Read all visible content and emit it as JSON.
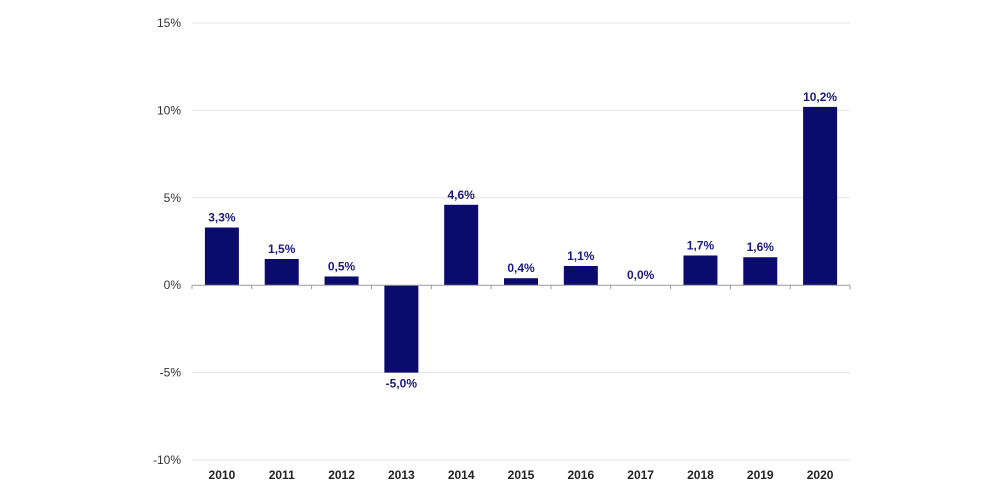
{
  "chart_data": {
    "type": "bar",
    "title": "",
    "xlabel": "",
    "ylabel": "",
    "categories": [
      "2010",
      "2011",
      "2012",
      "2013",
      "2014",
      "2015",
      "2016",
      "2017",
      "2018",
      "2019",
      "2020"
    ],
    "values": [
      3.3,
      1.5,
      0.5,
      -5.0,
      4.6,
      0.4,
      1.1,
      0.0,
      1.7,
      1.6,
      10.2
    ],
    "data_labels": [
      "3,3%",
      "1,5%",
      "0,5%",
      "-5,0%",
      "4,6%",
      "0,4%",
      "1,1%",
      "0,0%",
      "1,7%",
      "1,6%",
      "10,2%"
    ],
    "ylim": [
      -10,
      15
    ],
    "yticks": [
      15,
      10,
      5,
      0,
      -5,
      -10
    ],
    "ytick_labels": [
      "15%",
      "10%",
      "5%",
      "0%",
      "-5%",
      "-10%"
    ],
    "grid": true,
    "legend": "none",
    "bar_color": "#0b0b6e",
    "label_color": "#1a1a80"
  }
}
